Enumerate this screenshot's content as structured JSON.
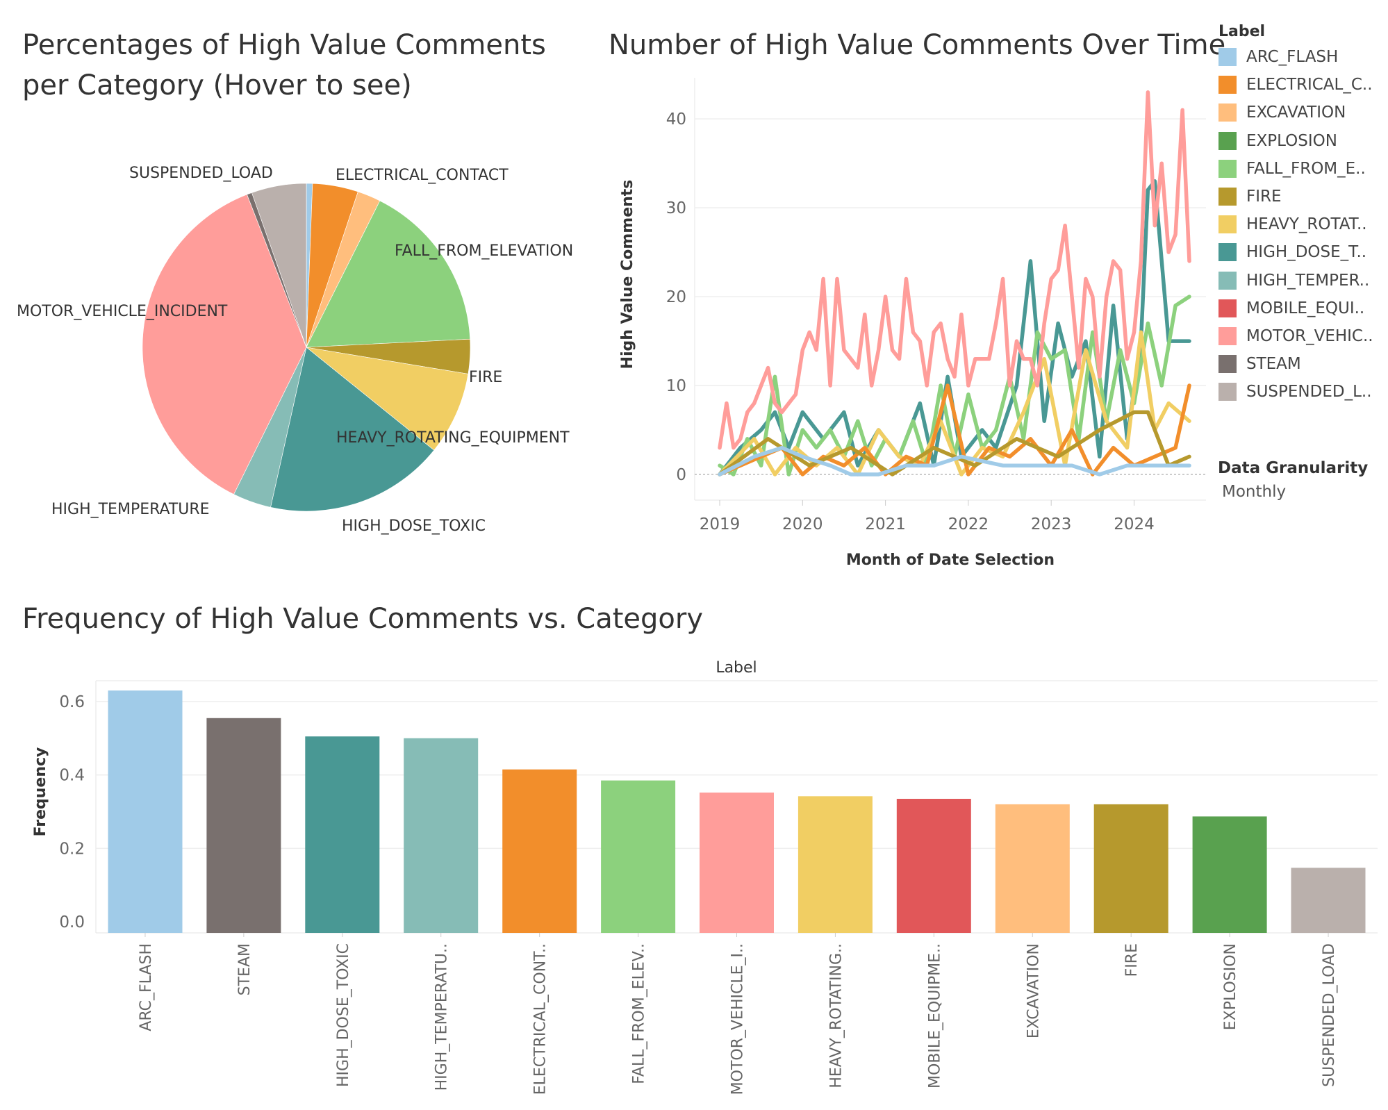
{
  "titles": {
    "pie": "Percentages of High Value Comments per Category (Hover to see)",
    "line": "Number of High Value Comments Over Time",
    "bar": "Frequency of High Value Comments vs. Category"
  },
  "legend": {
    "title": "Label",
    "items": [
      {
        "label": "ARC_FLASH",
        "color": "#a0cbe8"
      },
      {
        "label": "ELECTRICAL_C..",
        "color": "#f28e2b"
      },
      {
        "label": "EXCAVATION",
        "color": "#ffbe7d"
      },
      {
        "label": "EXPLOSION",
        "color": "#59a14f"
      },
      {
        "label": "FALL_FROM_E..",
        "color": "#8cd17d"
      },
      {
        "label": "FIRE",
        "color": "#b6992d"
      },
      {
        "label": "HEAVY_ROTAT..",
        "color": "#f1ce63"
      },
      {
        "label": "HIGH_DOSE_T..",
        "color": "#499894"
      },
      {
        "label": "HIGH_TEMPER..",
        "color": "#86bcb6"
      },
      {
        "label": "MOBILE_EQUI..",
        "color": "#e15759"
      },
      {
        "label": "MOTOR_VEHIC..",
        "color": "#ff9d9a"
      },
      {
        "label": "STEAM",
        "color": "#79706e"
      },
      {
        "label": "SUSPENDED_L..",
        "color": "#bab0ac"
      }
    ]
  },
  "granularity": {
    "title": "Data Granularity",
    "value": "Monthly"
  },
  "chart_data": [
    {
      "type": "pie",
      "title": "Percentages of High Value Comments per Category (Hover to see)",
      "slices": [
        {
          "name": "ARC_FLASH",
          "value": 0.6,
          "color": "#a0cbe8",
          "label": ""
        },
        {
          "name": "ELECTRICAL_CONTACT",
          "value": 4.5,
          "color": "#f28e2b",
          "label": "ELECTRICAL_CONTACT"
        },
        {
          "name": "EXCAVATION",
          "value": 2.3,
          "color": "#ffbe7d",
          "label": ""
        },
        {
          "name": "FALL_FROM_ELEVATION",
          "value": 16.8,
          "color": "#8cd17d",
          "label": "FALL_FROM_ELEVATION"
        },
        {
          "name": "FIRE",
          "value": 3.4,
          "color": "#b6992d",
          "label": "FIRE"
        },
        {
          "name": "HEAVY_ROTATING_EQUIPMENT",
          "value": 8.2,
          "color": "#f1ce63",
          "label": "HEAVY_ROTATING_EQUIPMENT"
        },
        {
          "name": "HIGH_DOSE_TOXIC",
          "value": 17.7,
          "color": "#499894",
          "label": "HIGH_DOSE_TOXIC"
        },
        {
          "name": "HIGH_TEMPERATURE",
          "value": 3.8,
          "color": "#86bcb6",
          "label": "HIGH_TEMPERATURE"
        },
        {
          "name": "MOTOR_VEHICLE_INCIDENT",
          "value": 36.8,
          "color": "#ff9d9a",
          "label": "MOTOR_VEHICLE_INCIDENT"
        },
        {
          "name": "STEAM",
          "value": 0.5,
          "color": "#79706e",
          "label": ""
        },
        {
          "name": "SUSPENDED_LOAD",
          "value": 5.4,
          "color": "#bab0ac",
          "label": "SUSPENDED_LOAD"
        }
      ]
    },
    {
      "type": "line",
      "title": "Number of High Value Comments Over Time",
      "xlabel": "Month of Date Selection",
      "ylabel": "High Value Comments",
      "xlim": [
        "2019-01",
        "2024-09"
      ],
      "ylim": [
        0,
        44
      ],
      "xticks": [
        "2019",
        "2020",
        "2021",
        "2022",
        "2023",
        "2024"
      ],
      "yticks": [
        0,
        10,
        20,
        30,
        40
      ],
      "grid": true,
      "series": [
        {
          "name": "HIGH_DOSE_TOXIC",
          "color": "#499894",
          "x": [
            "2019-01",
            "2019-04",
            "2019-07",
            "2019-09",
            "2019-11",
            "2020-01",
            "2020-04",
            "2020-07",
            "2020-09",
            "2020-12",
            "2021-03",
            "2021-06",
            "2021-08",
            "2021-10",
            "2021-12",
            "2022-03",
            "2022-05",
            "2022-08",
            "2022-10",
            "2022-12",
            "2023-02",
            "2023-04",
            "2023-06",
            "2023-08",
            "2023-10",
            "2023-12",
            "2024-02",
            "2024-03",
            "2024-04",
            "2024-06",
            "2024-09"
          ],
          "y": [
            0,
            3,
            5,
            7,
            3,
            7,
            4,
            7,
            1,
            5,
            2,
            8,
            1,
            11,
            2,
            5,
            3,
            10,
            24,
            6,
            17,
            11,
            15,
            2,
            19,
            4,
            15,
            32,
            33,
            15,
            15
          ]
        },
        {
          "name": "FALL_FROM_ELEVATION",
          "color": "#8cd17d",
          "x": [
            "2019-01",
            "2019-03",
            "2019-05",
            "2019-07",
            "2019-09",
            "2019-11",
            "2020-01",
            "2020-03",
            "2020-05",
            "2020-07",
            "2020-09",
            "2020-11",
            "2021-01",
            "2021-03",
            "2021-05",
            "2021-07",
            "2021-09",
            "2021-11",
            "2022-01",
            "2022-03",
            "2022-05",
            "2022-07",
            "2022-09",
            "2022-11",
            "2023-01",
            "2023-03",
            "2023-05",
            "2023-07",
            "2023-09",
            "2023-11",
            "2024-01",
            "2024-03",
            "2024-05",
            "2024-07",
            "2024-09"
          ],
          "y": [
            1,
            0,
            4,
            1,
            11,
            0,
            5,
            3,
            5,
            2,
            6,
            1,
            4,
            2,
            6,
            1,
            10,
            2,
            9,
            3,
            5,
            11,
            4,
            16,
            13,
            14,
            4,
            16,
            6,
            14,
            8,
            17,
            10,
            19,
            20
          ]
        },
        {
          "name": "HEAVY_ROTATING_EQUIPMENT",
          "color": "#f1ce63",
          "x": [
            "2019-01",
            "2019-06",
            "2019-09",
            "2019-12",
            "2020-03",
            "2020-06",
            "2020-09",
            "2020-12",
            "2021-03",
            "2021-06",
            "2021-09",
            "2021-12",
            "2022-03",
            "2022-06",
            "2022-09",
            "2022-12",
            "2023-03",
            "2023-06",
            "2023-09",
            "2023-12",
            "2024-02",
            "2024-04",
            "2024-06",
            "2024-09"
          ],
          "y": [
            0,
            4,
            0,
            3,
            1,
            3,
            0,
            5,
            2,
            1,
            6,
            0,
            3,
            2,
            7,
            13,
            1,
            14,
            6,
            3,
            16,
            5,
            8,
            6
          ]
        },
        {
          "name": "ELECTRICAL_CONTACT",
          "color": "#f28e2b",
          "x": [
            "2019-01",
            "2019-04",
            "2019-07",
            "2019-10",
            "2020-01",
            "2020-04",
            "2020-07",
            "2020-10",
            "2021-01",
            "2021-04",
            "2021-07",
            "2021-10",
            "2022-01",
            "2022-04",
            "2022-07",
            "2022-10",
            "2023-01",
            "2023-04",
            "2023-07",
            "2023-10",
            "2024-01",
            "2024-04",
            "2024-07",
            "2024-09"
          ],
          "y": [
            0,
            1,
            2,
            3,
            0,
            2,
            1,
            3,
            0,
            2,
            1,
            10,
            0,
            3,
            2,
            4,
            1,
            5,
            0,
            3,
            1,
            2,
            3,
            10
          ]
        },
        {
          "name": "FIRE",
          "color": "#b6992d",
          "x": [
            "2019-01",
            "2019-08",
            "2020-02",
            "2020-08",
            "2021-02",
            "2021-08",
            "2022-02",
            "2022-08",
            "2023-02",
            "2023-08",
            "2024-01",
            "2024-03",
            "2024-06",
            "2024-09"
          ],
          "y": [
            0,
            4,
            1,
            3,
            0,
            3,
            1,
            4,
            2,
            5,
            7,
            7,
            1,
            2
          ]
        },
        {
          "name": "MOTOR_VEHICLE_INCIDENT",
          "color": "#ff9d9a",
          "x": [
            "2019-01",
            "2019-02",
            "2019-03",
            "2019-04",
            "2019-05",
            "2019-06",
            "2019-07",
            "2019-08",
            "2019-09",
            "2019-10",
            "2019-11",
            "2019-12",
            "2020-01",
            "2020-02",
            "2020-03",
            "2020-04",
            "2020-05",
            "2020-06",
            "2020-07",
            "2020-08",
            "2020-09",
            "2020-10",
            "2020-11",
            "2020-12",
            "2021-01",
            "2021-02",
            "2021-03",
            "2021-04",
            "2021-05",
            "2021-06",
            "2021-07",
            "2021-08",
            "2021-09",
            "2021-10",
            "2021-11",
            "2021-12",
            "2022-01",
            "2022-02",
            "2022-03",
            "2022-04",
            "2022-05",
            "2022-06",
            "2022-07",
            "2022-08",
            "2022-09",
            "2022-10",
            "2022-11",
            "2022-12",
            "2023-01",
            "2023-02",
            "2023-03",
            "2023-04",
            "2023-05",
            "2023-06",
            "2023-07",
            "2023-08",
            "2023-09",
            "2023-10",
            "2023-11",
            "2023-12",
            "2024-01",
            "2024-02",
            "2024-03",
            "2024-04",
            "2024-05",
            "2024-06",
            "2024-07",
            "2024-08",
            "2024-09"
          ],
          "y": [
            3,
            8,
            3,
            4,
            7,
            8,
            10,
            12,
            8,
            7,
            8,
            9,
            14,
            16,
            14,
            22,
            10,
            22,
            14,
            13,
            12,
            18,
            10,
            14,
            20,
            14,
            13,
            22,
            16,
            15,
            10,
            16,
            17,
            13,
            11,
            18,
            10,
            13,
            13,
            13,
            17,
            22,
            10,
            15,
            13,
            13,
            10,
            17,
            22,
            23,
            28,
            20,
            12,
            22,
            20,
            11,
            20,
            24,
            23,
            13,
            16,
            24,
            43,
            28,
            35,
            25,
            27,
            41,
            24
          ]
        },
        {
          "name": "ARC_FLASH",
          "color": "#a0cbe8",
          "x": [
            "2019-01",
            "2019-06",
            "2019-10",
            "2020-01",
            "2020-05",
            "2020-08",
            "2020-12",
            "2021-04",
            "2021-08",
            "2021-12",
            "2022-06",
            "2022-10",
            "2023-04",
            "2023-08",
            "2023-12",
            "2024-06",
            "2024-09"
          ],
          "y": [
            0,
            2,
            3,
            2,
            1,
            0,
            0,
            1,
            1,
            2,
            1,
            1,
            1,
            0,
            1,
            1,
            1
          ]
        }
      ]
    },
    {
      "type": "bar",
      "title": "Frequency of High Value Comments vs. Category",
      "header": "Label",
      "ylabel": "Frequency",
      "ylim": [
        0,
        0.68
      ],
      "yticks": [
        "0.0",
        "0.2",
        "0.4",
        "0.6"
      ],
      "categories": [
        "ARC_FLASH",
        "STEAM",
        "HIGH_DOSE_TOXIC",
        "HIGH_TEMPERATU..",
        "ELECTRICAL_CONT..",
        "FALL_FROM_ELEV..",
        "MOTOR_VEHICLE_I..",
        "HEAVY_ROTATING..",
        "MOBILE_EQUIPME..",
        "EXCAVATION",
        "FIRE",
        "EXPLOSION",
        "SUSPENDED_LOAD"
      ],
      "values": [
        0.63,
        0.555,
        0.505,
        0.5,
        0.415,
        0.385,
        0.352,
        0.342,
        0.335,
        0.32,
        0.32,
        0.287,
        0.147
      ],
      "colors": [
        "#a0cbe8",
        "#79706e",
        "#499894",
        "#86bcb6",
        "#f28e2b",
        "#8cd17d",
        "#ff9d9a",
        "#f1ce63",
        "#e15759",
        "#ffbe7d",
        "#b6992d",
        "#59a14f",
        "#bab0ac"
      ]
    }
  ]
}
